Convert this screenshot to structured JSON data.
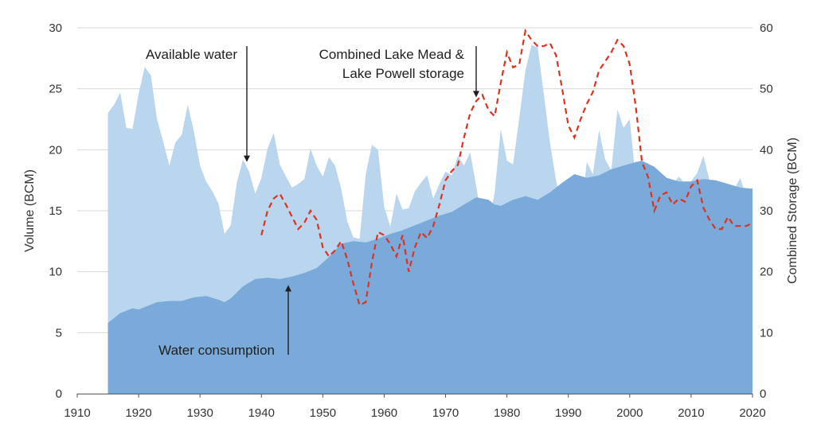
{
  "chart_data": {
    "type": "area",
    "xlabel": "",
    "ylabel": "Volume (BCM)",
    "y2label": "Combined Storage (BCM)",
    "xlim": [
      1910,
      2020
    ],
    "ylim": [
      0,
      30
    ],
    "y2lim": [
      0,
      60
    ],
    "x_ticks": [
      1910,
      1920,
      1930,
      1940,
      1950,
      1960,
      1970,
      1980,
      1990,
      2000,
      2010,
      2020
    ],
    "y_ticks": [
      0,
      5,
      10,
      15,
      20,
      25,
      30
    ],
    "y2_ticks": [
      0,
      10,
      20,
      30,
      40,
      50,
      60
    ],
    "grid": "horizontal",
    "colors": {
      "available": "#b9d6ee",
      "consumption": "#7aaad9",
      "storage": "#e0301e",
      "grid": "#d9d9d9"
    },
    "series": [
      {
        "key": "available",
        "axis": "left",
        "style": "area",
        "x": [
          1915,
          1916,
          1917,
          1918,
          1919,
          1920,
          1921,
          1922,
          1923,
          1924,
          1925,
          1926,
          1927,
          1928,
          1929,
          1930,
          1931,
          1932,
          1933,
          1934,
          1935,
          1936,
          1937,
          1938,
          1939,
          1940,
          1941,
          1942,
          1943,
          1944,
          1945,
          1946,
          1947,
          1948,
          1949,
          1950,
          1951,
          1952,
          1953,
          1954,
          1955,
          1956,
          1957,
          1958,
          1959,
          1960,
          1961,
          1962,
          1963,
          1964,
          1965,
          1966,
          1967,
          1968,
          1969,
          1970,
          1971,
          1972,
          1973,
          1974,
          1975,
          1976,
          1977,
          1978,
          1979,
          1980,
          1981,
          1982,
          1983,
          1984,
          1985,
          1986,
          1987,
          1988,
          1989,
          1990,
          1991,
          1992,
          1993,
          1994,
          1995,
          1996,
          1997,
          1998,
          1999,
          2000,
          2001,
          2002,
          2003,
          2004,
          2005,
          2006,
          2007,
          2008,
          2009,
          2010,
          2011,
          2012,
          2013,
          2014,
          2015,
          2016,
          2017,
          2018,
          2019,
          2020
        ],
        "values": [
          23.0,
          23.7,
          24.7,
          21.8,
          21.7,
          24.6,
          26.8,
          26.1,
          22.5,
          20.7,
          18.7,
          20.6,
          21.2,
          23.7,
          21.5,
          18.7,
          17.4,
          16.6,
          15.6,
          13.1,
          13.8,
          17.3,
          19.2,
          18.2,
          16.4,
          17.7,
          20.1,
          21.4,
          18.8,
          17.8,
          16.9,
          17.2,
          17.6,
          20.1,
          18.7,
          17.8,
          19.4,
          18.7,
          16.8,
          14.1,
          12.8,
          12.7,
          18.0,
          20.4,
          20.0,
          15.3,
          13.7,
          16.4,
          15.1,
          15.2,
          16.6,
          17.3,
          17.9,
          16.0,
          17.2,
          18.2,
          17.9,
          19.5,
          18.7,
          19.8,
          17.0,
          13.8,
          13.7,
          16.5,
          21.7,
          19.1,
          18.8,
          22.6,
          26.5,
          28.6,
          28.4,
          24.6,
          20.6,
          17.5,
          15.3,
          13.3,
          13.6,
          14.5,
          19.0,
          18.0,
          21.6,
          19.2,
          18.3,
          23.3,
          21.8,
          22.5,
          17.5,
          15.9,
          11.7,
          11.7,
          11.4,
          15.1,
          17.2,
          17.8,
          17.2,
          17.4,
          18.1,
          19.5,
          17.5,
          16.0,
          12.7,
          15.0,
          16.7,
          17.7,
          16.1,
          16.9
        ],
        "values_note_unused": ""
      },
      {
        "key": "consumption",
        "axis": "left",
        "style": "area",
        "x": [
          1915,
          1917,
          1919,
          1920,
          1921,
          1923,
          1925,
          1927,
          1929,
          1931,
          1933,
          1934,
          1935,
          1937,
          1939,
          1941,
          1943,
          1945,
          1947,
          1949,
          1951,
          1953,
          1955,
          1957,
          1959,
          1961,
          1963,
          1965,
          1967,
          1969,
          1971,
          1973,
          1975,
          1977,
          1978,
          1979,
          1981,
          1983,
          1985,
          1987,
          1989,
          1991,
          1993,
          1995,
          1997,
          1999,
          2001,
          2002,
          2004,
          2006,
          2008,
          2010,
          2012,
          2014,
          2016,
          2018,
          2020
        ],
        "values": [
          5.8,
          6.6,
          7.0,
          6.9,
          7.1,
          7.5,
          7.6,
          7.6,
          7.9,
          8.0,
          7.7,
          7.5,
          7.8,
          8.8,
          9.4,
          9.5,
          9.4,
          9.6,
          9.9,
          10.3,
          11.2,
          12.3,
          12.5,
          12.4,
          12.7,
          13.1,
          13.4,
          13.8,
          14.2,
          14.6,
          14.9,
          15.5,
          16.1,
          15.9,
          15.5,
          15.4,
          15.9,
          16.2,
          15.9,
          16.5,
          17.3,
          18.0,
          17.7,
          17.9,
          18.4,
          18.7,
          19.0,
          19.1,
          18.6,
          17.7,
          17.4,
          17.4,
          17.6,
          17.5,
          17.2,
          16.9,
          16.8
        ]
      },
      {
        "key": "storage",
        "axis": "right",
        "style": "dashed-line",
        "x": [
          1940,
          1941,
          1942,
          1943,
          1944,
          1945,
          1946,
          1947,
          1948,
          1949,
          1950,
          1951,
          1952,
          1953,
          1954,
          1955,
          1956,
          1957,
          1958,
          1959,
          1960,
          1961,
          1962,
          1963,
          1964,
          1965,
          1966,
          1967,
          1968,
          1969,
          1970,
          1971,
          1972,
          1973,
          1974,
          1975,
          1976,
          1977,
          1978,
          1979,
          1980,
          1981,
          1982,
          1983,
          1984,
          1985,
          1986,
          1987,
          1988,
          1989,
          1990,
          1991,
          1992,
          1993,
          1994,
          1995,
          1996,
          1997,
          1998,
          1999,
          2000,
          2001,
          2002,
          2003,
          2004,
          2005,
          2006,
          2007,
          2008,
          2009,
          2010,
          2011,
          2012,
          2013,
          2014,
          2015,
          2016,
          2017,
          2018,
          2019,
          2020
        ],
        "values": [
          26.0,
          30.0,
          32.0,
          32.8,
          31.0,
          29.0,
          27.0,
          28.0,
          30.0,
          28.5,
          24.0,
          22.5,
          23.5,
          25.0,
          22.0,
          18.0,
          14.5,
          15.0,
          21.5,
          26.5,
          26.0,
          24.5,
          22.5,
          26.0,
          20.0,
          24.0,
          26.5,
          25.5,
          27.5,
          31.0,
          35.0,
          36.5,
          37.5,
          42.0,
          46.0,
          48.0,
          49.0,
          46.5,
          45.5,
          51.0,
          56.0,
          53.5,
          54.0,
          59.5,
          58.0,
          57.0,
          57.0,
          57.5,
          55.5,
          50.0,
          44.0,
          42.0,
          45.0,
          47.5,
          49.5,
          53.0,
          54.5,
          56.0,
          58.0,
          57.0,
          54.0,
          47.0,
          38.0,
          35.5,
          30.0,
          32.5,
          33.0,
          31.0,
          32.0,
          31.5,
          34.0,
          35.0,
          30.5,
          28.5,
          27.0,
          27.0,
          29.0,
          27.5,
          27.5,
          27.5,
          28.0
        ]
      }
    ],
    "annotations": [
      {
        "key": "available",
        "lines": [
          "Available water"
        ],
        "arrow_direction": "down",
        "x": 1937.5,
        "y": 19.0
      },
      {
        "key": "storage",
        "lines": [
          "Combined Lake Mead &",
          "Lake Powell storage"
        ],
        "arrow_direction": "down",
        "x": 1975,
        "y": 24.3
      },
      {
        "key": "consumption",
        "lines": [
          "Water consumption"
        ],
        "arrow_direction": "up",
        "x": 1944.5,
        "y": 8.9
      }
    ]
  }
}
